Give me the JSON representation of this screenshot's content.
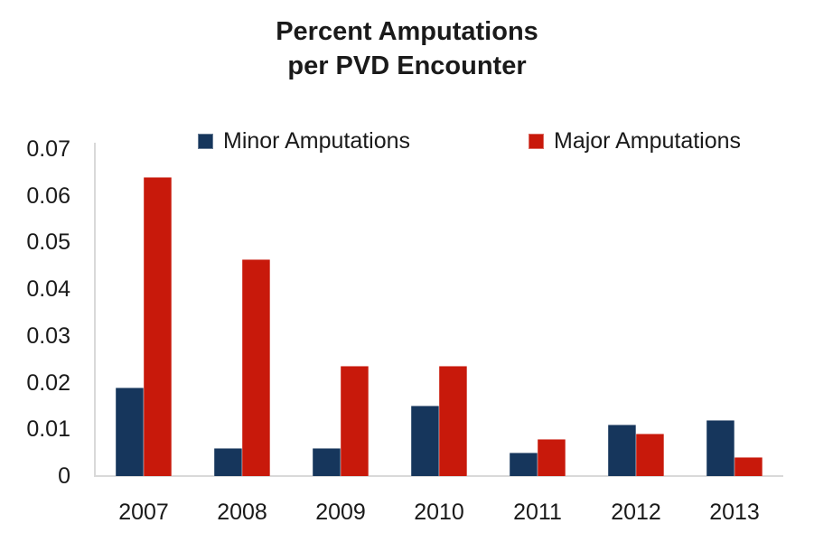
{
  "title": {
    "line1": "Percent Amputations",
    "line2": "per PVD Encounter"
  },
  "chart_data": {
    "type": "bar",
    "title": "Percent Amputations per PVD Encounter",
    "categories": [
      "2007",
      "2008",
      "2009",
      "2010",
      "2011",
      "2012",
      "2013"
    ],
    "series": [
      {
        "name": "Minor Amputations",
        "color": "#16365C",
        "values": [
          0.019,
          0.006,
          0.006,
          0.015,
          0.005,
          0.011,
          0.012
        ]
      },
      {
        "name": "Major Amputations",
        "color": "#C8190B",
        "values": [
          0.064,
          0.0465,
          0.0235,
          0.0235,
          0.008,
          0.009,
          0.004
        ]
      }
    ],
    "xlabel": "",
    "ylabel": "",
    "ylim": [
      0,
      0.07
    ],
    "y_ticks": [
      "0.07",
      "0.06",
      "0.05",
      "0.04",
      "0.03",
      "0.02",
      "0.01",
      "0"
    ],
    "grid": false,
    "legend_position": "top-inside",
    "axis_color": "#d9d9d9"
  }
}
